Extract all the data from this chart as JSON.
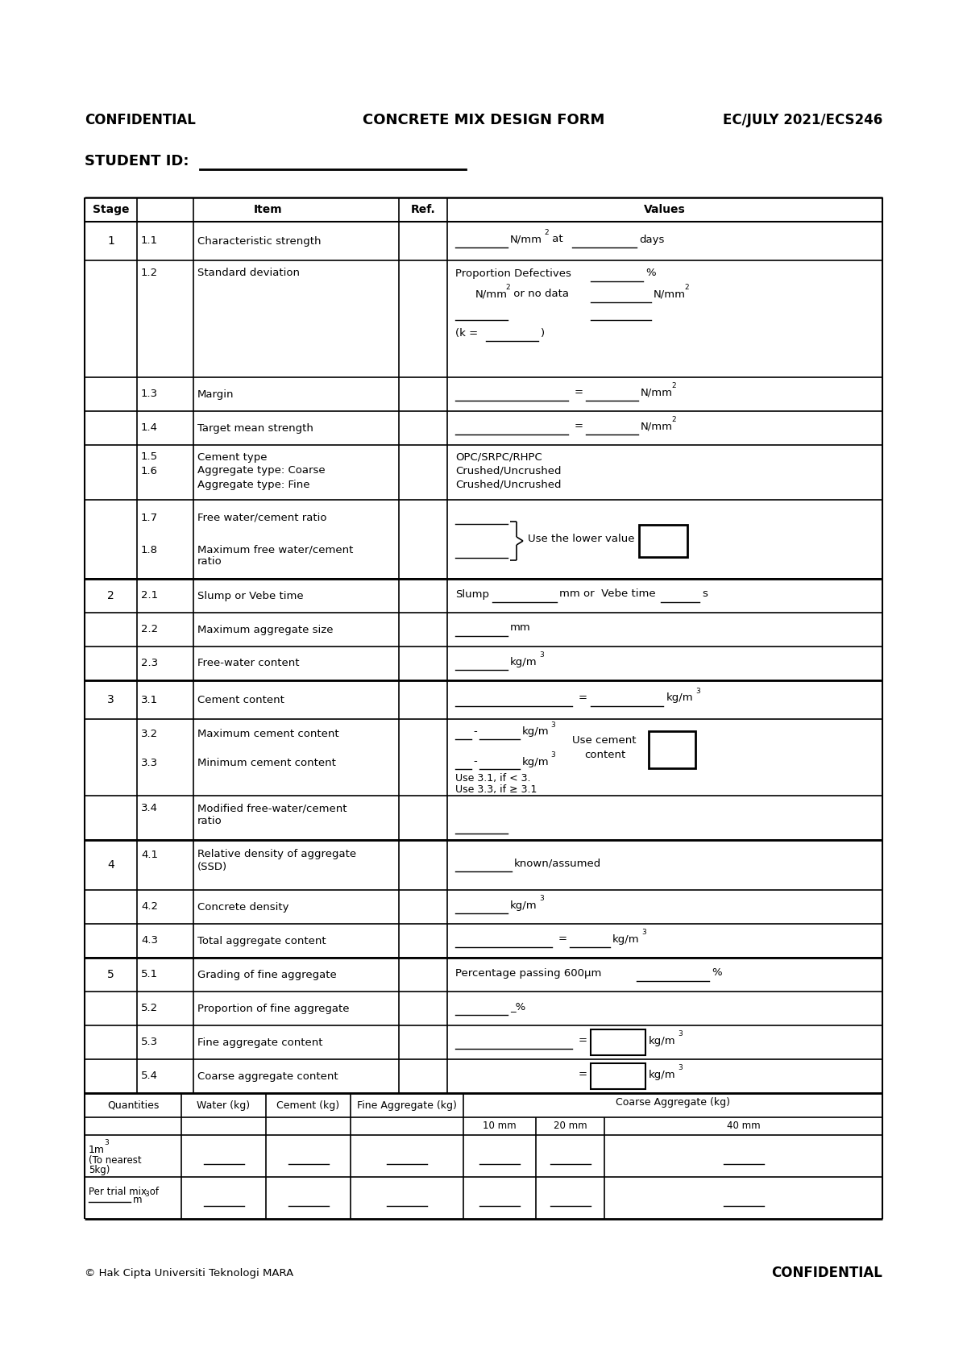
{
  "title_left": "CONFIDENTIAL",
  "title_center": "CONCRETE MIX DESIGN FORM",
  "title_right": "EC/JULY 2021/ECS246",
  "student_id_label": "STUDENT ID:",
  "footer_left": "© Hak Cipta Universiti Teknologi MARA",
  "footer_right": "CONFIDENTIAL",
  "bg_color": "#ffffff"
}
